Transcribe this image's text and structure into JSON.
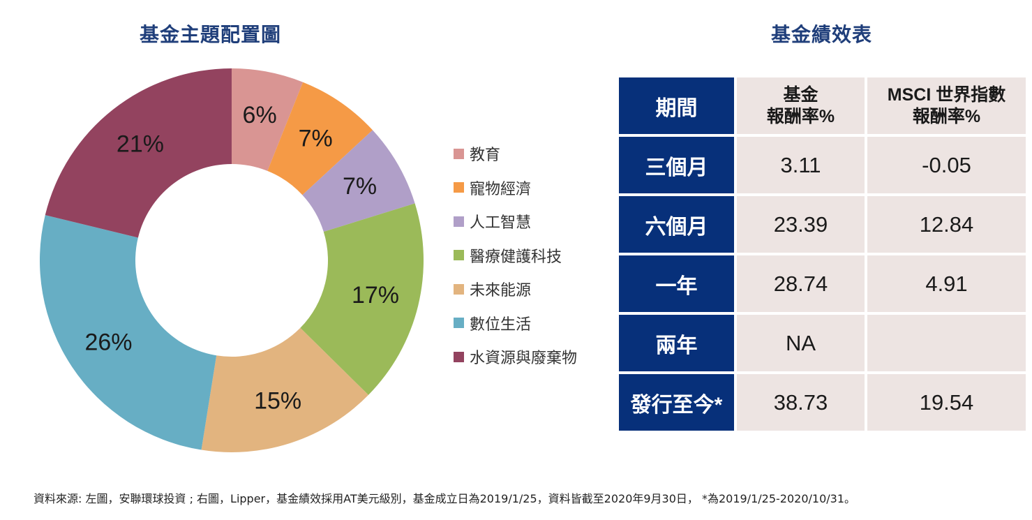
{
  "pie_title": "基金主題配置圖",
  "table_title": "基金績效表",
  "chart_data": {
    "type": "pie",
    "categories": [
      "教育",
      "寵物經濟",
      "人工智慧",
      "醫療健護科技",
      "未來能源",
      "數位生活",
      "水資源與廢棄物"
    ],
    "values": [
      6,
      7,
      7,
      17,
      15,
      26,
      21
    ],
    "value_labels": [
      "6%",
      "7%",
      "7%",
      "17%",
      "15%",
      "26%",
      "21%"
    ],
    "colors": [
      "#d99593",
      "#f59a46",
      "#b09fc8",
      "#9bba59",
      "#e2b47f",
      "#67aec4",
      "#93435f"
    ],
    "legend_placement": "right"
  },
  "performance_table": {
    "headers": [
      "期間",
      "基金\n報酬率%",
      "MSCI 世界指數\n報酬率%"
    ],
    "rows": [
      {
        "period": "三個月",
        "fund": "3.11",
        "msci": "-0.05"
      },
      {
        "period": "六個月",
        "fund": "23.39",
        "msci": "12.84"
      },
      {
        "period": "一年",
        "fund": "28.74",
        "msci": "4.91"
      },
      {
        "period": "兩年",
        "fund": "NA",
        "msci": ""
      },
      {
        "period": "發行至今*",
        "fund": "38.73",
        "msci": "19.54"
      }
    ],
    "colors": {
      "header_bg": "#07307a",
      "cell_bg": "#ede4e2"
    }
  },
  "footnote": "資料來源: 左圖，安聯環球投資 ; 右圖，Lipper，基金績效採用AT美元級別，基金成立日為2019/1/25，資料皆截至2020年9月30日， *為2019/1/25-2020/10/31。"
}
